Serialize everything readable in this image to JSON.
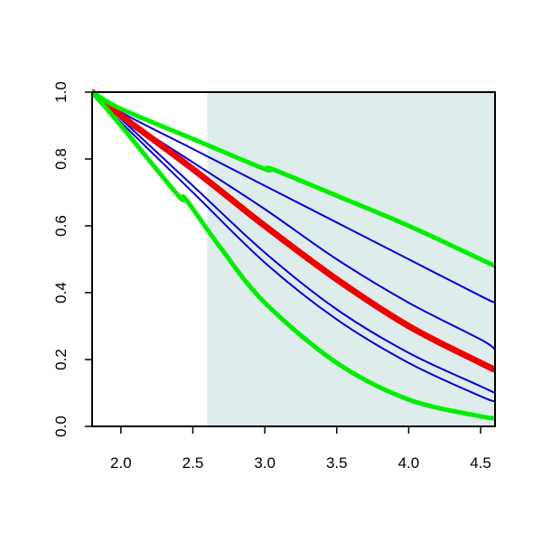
{
  "chart_data": {
    "type": "line",
    "title": "",
    "xlabel": "",
    "ylabel": "",
    "xlim": [
      1.8,
      4.6
    ],
    "ylim": [
      0.0,
      1.0
    ],
    "x_ticks": [
      "2.0",
      "2.5",
      "3.0",
      "3.5",
      "4.0",
      "4.5"
    ],
    "y_ticks": [
      "0.0",
      "0.2",
      "0.4",
      "0.6",
      "0.8",
      "1.0"
    ],
    "grid": false,
    "shaded_region": {
      "x_from": 2.6,
      "x_to": 4.6,
      "color": "#deeceb"
    },
    "series": [
      {
        "role": "upper-bound",
        "color": "#00ee00",
        "x": [
          1.8,
          2.0,
          2.5,
          3.0,
          3.05,
          3.5,
          4.0,
          4.5,
          4.6
        ],
        "y": [
          1.0,
          0.95,
          0.86,
          0.77,
          0.77,
          0.69,
          0.6,
          0.5,
          0.48
        ]
      },
      {
        "role": "estimate-1",
        "color": "#0000dd",
        "x": [
          1.8,
          2.0,
          2.5,
          3.0,
          3.5,
          4.0,
          4.5,
          4.6
        ],
        "y": [
          1.0,
          0.94,
          0.83,
          0.72,
          0.61,
          0.5,
          0.39,
          0.37
        ]
      },
      {
        "role": "estimate-2",
        "color": "#0000dd",
        "x": [
          1.8,
          2.0,
          2.5,
          3.0,
          3.5,
          4.0,
          4.5,
          4.6
        ],
        "y": [
          1.0,
          0.93,
          0.79,
          0.65,
          0.5,
          0.37,
          0.26,
          0.23
        ]
      },
      {
        "role": "central-estimate",
        "color": "#ee0000",
        "x": [
          1.8,
          2.0,
          2.5,
          3.0,
          3.5,
          4.0,
          4.5,
          4.6
        ],
        "y": [
          1.0,
          0.93,
          0.77,
          0.6,
          0.44,
          0.3,
          0.19,
          0.17
        ]
      },
      {
        "role": "estimate-3",
        "color": "#0000dd",
        "x": [
          1.8,
          2.0,
          2.5,
          3.0,
          3.5,
          4.0,
          4.5,
          4.6
        ],
        "y": [
          1.0,
          0.92,
          0.72,
          0.52,
          0.35,
          0.22,
          0.12,
          0.1
        ]
      },
      {
        "role": "estimate-4",
        "color": "#0000dd",
        "x": [
          1.8,
          2.0,
          2.5,
          3.0,
          3.5,
          4.0,
          4.5,
          4.6
        ],
        "y": [
          1.0,
          0.91,
          0.7,
          0.49,
          0.32,
          0.19,
          0.09,
          0.075
        ]
      },
      {
        "role": "lower-bound",
        "color": "#00ee00",
        "x": [
          1.8,
          2.0,
          2.4,
          2.45,
          2.7,
          3.0,
          3.5,
          4.0,
          4.5,
          4.6
        ],
        "y": [
          1.0,
          0.9,
          0.69,
          0.68,
          0.53,
          0.37,
          0.19,
          0.08,
          0.03,
          0.025
        ]
      }
    ]
  }
}
